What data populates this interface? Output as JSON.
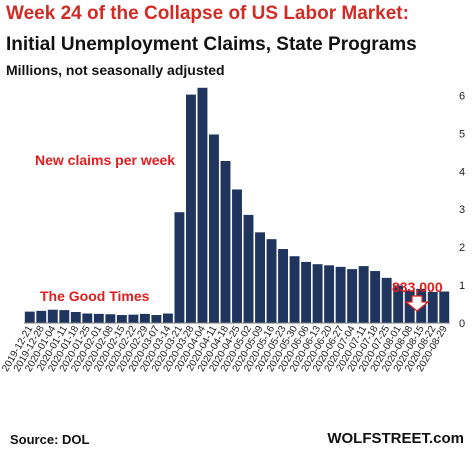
{
  "header": {
    "title": "Week 24 of the Collapse of US Labor Market:",
    "subtitle": "Initial Unemployment Claims, State Programs",
    "units": "Millions, not seasonally adjusted"
  },
  "footer": {
    "source": "Source: DOL",
    "brand": "WOLFSTREET.com"
  },
  "chart_data": {
    "type": "bar",
    "title": "Initial Unemployment Claims, State Programs",
    "ylabel": "",
    "xlabel": "",
    "ylim": [
      0,
      6.3
    ],
    "yticks": [
      0,
      1,
      2,
      3,
      4,
      5,
      6
    ],
    "y_axis_side": "right",
    "grid": false,
    "bar_color": "#1f355e",
    "annotation_color": "#e01e1e",
    "categories": [
      "2019-12-21",
      "2019-12-28",
      "2020-01-04",
      "2020-01-11",
      "2020-01-18",
      "2020-01-25",
      "2020-02-01",
      "2020-02-08",
      "2020-02-15",
      "2020-02-22",
      "2020-02-29",
      "2020-03-07",
      "2020-03-14",
      "2020-03-21",
      "2020-03-28",
      "2020-04-04",
      "2020-04-11",
      "2020-04-18",
      "2020-04-25",
      "2020-05-02",
      "2020-05-09",
      "2020-05-16",
      "2020-05-23",
      "2020-05-30",
      "2020-06-06",
      "2020-06-13",
      "2020-06-20",
      "2020-06-27",
      "2020-07-04",
      "2020-07-11",
      "2020-07-18",
      "2020-07-25",
      "2020-08-01",
      "2020-08-08",
      "2020-08-15",
      "2020-08-22",
      "2020-08-29"
    ],
    "values": [
      0.3,
      0.32,
      0.35,
      0.34,
      0.29,
      0.25,
      0.24,
      0.23,
      0.21,
      0.22,
      0.24,
      0.21,
      0.25,
      2.92,
      6.02,
      6.2,
      4.97,
      4.27,
      3.52,
      2.85,
      2.39,
      2.21,
      1.95,
      1.76,
      1.61,
      1.55,
      1.52,
      1.48,
      1.42,
      1.5,
      1.37,
      1.19,
      0.99,
      0.86,
      0.9,
      0.82,
      0.83
    ],
    "x_tick_labels": [
      "2019-12-21",
      "2019-12-28",
      "2020-01-04",
      "2020-01-11",
      "2020-01-18",
      "2020-01-25",
      "2020-02-01",
      "2020-02-08",
      "2020-02-15",
      "2020-02-22",
      "2020-02-29",
      "2020-03-07",
      "2020-03-14",
      "2020-03-21",
      "2020-03-28",
      "2020-04-04",
      "2020-04-11",
      "2020-04-18",
      "2020-04-25",
      "2020-05-02",
      "2020-05-09",
      "2020-05-16",
      "2020-05-23",
      "2020-05-30",
      "2020-06-06",
      "2020-06-13",
      "2020-06-20",
      "2020-06-27",
      "2020-07-04",
      "2020-07-11",
      "2020-07-18",
      "2020-07-25",
      "2020-08-01",
      "2020-08-08",
      "2020-08-15",
      "2020-08-22",
      "2020-08-29"
    ],
    "annotations": [
      {
        "text": "New claims per week"
      },
      {
        "text": "The Good Times"
      },
      {
        "text": "833,000"
      }
    ]
  }
}
